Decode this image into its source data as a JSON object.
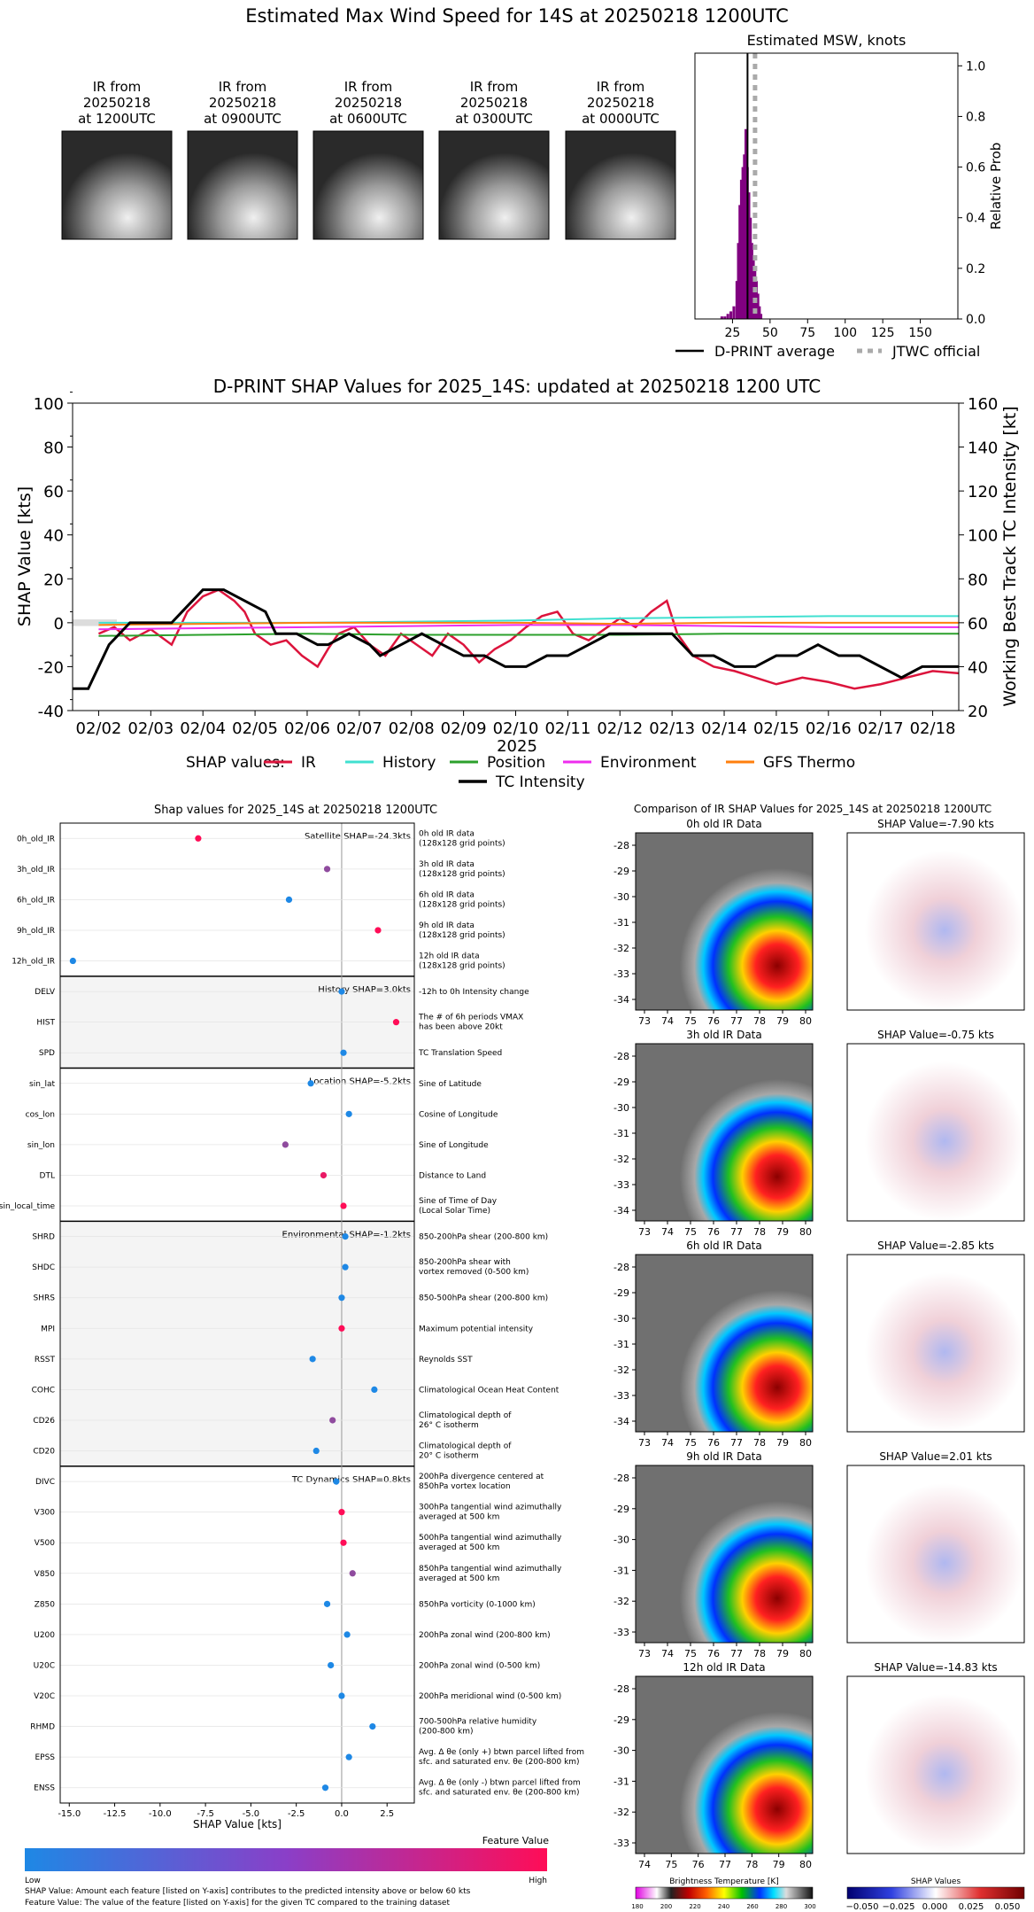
{
  "main_title": "Estimated Max Wind Speed for 14S at 20250218 1200UTC",
  "ir_thumbnails": [
    {
      "line1": "IR from",
      "line2": "20250218",
      "line3": "at 1200UTC"
    },
    {
      "line1": "IR from",
      "line2": "20250218",
      "line3": "at 0900UTC"
    },
    {
      "line1": "IR from",
      "line2": "20250218",
      "line3": "at 0600UTC"
    },
    {
      "line1": "IR from",
      "line2": "20250218",
      "line3": "at 0300UTC"
    },
    {
      "line1": "IR from",
      "line2": "20250218",
      "line3": "at 0000UTC"
    }
  ],
  "colors": {
    "ir": "#dc143c",
    "history": "#40e0d0",
    "position": "#2ca02c",
    "environment": "#ee2cee",
    "gfs_thermo": "#ff7f0e",
    "tc": "#000000",
    "hist_bar": "#800080",
    "jtwc": "#aaaaaa",
    "shap_low": "#1e88e5",
    "shap_high": "#ff0d57"
  },
  "chart_data": [
    {
      "id": "msw_histogram",
      "type": "bar",
      "title": "Estimated MSW, knots",
      "ylabel": "Relative Prob",
      "xlim": [
        0,
        175
      ],
      "ylim": [
        0,
        1.05
      ],
      "xticks": [
        "25",
        "50",
        "75",
        "100",
        "125",
        "150"
      ],
      "yticks": [
        "0.0",
        "0.2",
        "0.4",
        "0.6",
        "0.8",
        "1.0"
      ],
      "bin_centers": [
        18,
        20,
        22,
        24,
        26,
        28,
        29,
        30,
        31,
        32,
        33,
        34,
        35,
        36,
        37,
        38,
        39,
        40,
        41,
        42,
        43,
        44
      ],
      "values": [
        0.01,
        0.01,
        0.02,
        0.03,
        0.05,
        0.15,
        0.3,
        0.45,
        0.55,
        0.6,
        0.65,
        0.75,
        0.6,
        0.5,
        0.4,
        0.3,
        0.25,
        0.2,
        0.15,
        0.1,
        0.05,
        0.02
      ],
      "dprint_average": 35,
      "jtwc_official": 40,
      "legend": [
        {
          "label": "D-PRINT average",
          "style": "solid"
        },
        {
          "label": "JTWC official",
          "style": "dotted"
        }
      ]
    },
    {
      "id": "shap_timeseries",
      "type": "line",
      "title": "D-PRINT SHAP Values for 2025_14S: updated at 20250218 1200 UTC",
      "ylabel": "SHAP Value [kts]",
      "ylabel_right": "Working Best Track TC Intensity [kt]",
      "xlabel": "2025",
      "ylim": [
        -40,
        100
      ],
      "ylim_right": [
        20,
        160
      ],
      "yticks": [
        "-40",
        "-20",
        "0",
        "20",
        "40",
        "60",
        "80",
        "100"
      ],
      "yticks_right": [
        "20",
        "40",
        "60",
        "80",
        "100",
        "120",
        "140",
        "160"
      ],
      "x_tick_labels": [
        "02/02",
        "02/03",
        "02/04",
        "02/05",
        "02/06",
        "02/07",
        "02/08",
        "02/09",
        "02/10",
        "02/11",
        "02/12",
        "02/13",
        "02/14",
        "02/15",
        "02/16",
        "02/17",
        "02/18"
      ],
      "xlim_days": [
        1.5,
        18.5
      ],
      "legend_title": "SHAP values:",
      "series": [
        {
          "name": "IR",
          "key": "ir",
          "x": [
            2,
            2.3,
            2.6,
            3,
            3.4,
            3.7,
            4,
            4.3,
            4.6,
            4.8,
            5,
            5.3,
            5.6,
            5.9,
            6.2,
            6.4,
            6.6,
            6.9,
            7.2,
            7.5,
            7.8,
            8.1,
            8.4,
            8.7,
            9,
            9.3,
            9.6,
            9.9,
            10.2,
            10.5,
            10.8,
            11.1,
            11.4,
            11.7,
            12,
            12.3,
            12.6,
            12.9,
            13.1,
            13.4,
            13.8,
            14.2,
            14.6,
            15,
            15.5,
            16,
            16.5,
            17,
            17.5,
            18,
            18.5
          ],
          "y": [
            -5,
            -2,
            -8,
            -3,
            -10,
            5,
            12,
            15,
            10,
            5,
            -5,
            -10,
            -8,
            -15,
            -20,
            -12,
            -5,
            -2,
            -10,
            -15,
            -5,
            -10,
            -15,
            -5,
            -10,
            -18,
            -12,
            -8,
            -2,
            3,
            5,
            -5,
            -8,
            -3,
            2,
            -2,
            5,
            10,
            -5,
            -15,
            -20,
            -22,
            -25,
            -28,
            -25,
            -27,
            -30,
            -28,
            -25,
            -22,
            -23
          ]
        },
        {
          "name": "History",
          "key": "history",
          "x": [
            2,
            4,
            6,
            8,
            10,
            12,
            14,
            16,
            18.5
          ],
          "y": [
            0,
            0,
            0,
            0.5,
            1,
            2,
            2.5,
            3,
            3
          ]
        },
        {
          "name": "Position",
          "key": "position",
          "x": [
            2,
            4,
            6,
            8,
            10,
            12,
            14,
            16,
            18.5
          ],
          "y": [
            -6,
            -5.5,
            -5,
            -5.5,
            -5.5,
            -5.5,
            -5,
            -5,
            -5
          ]
        },
        {
          "name": "Environment",
          "key": "environment",
          "x": [
            2,
            4,
            6,
            8,
            10,
            12,
            14,
            16,
            18.5
          ],
          "y": [
            -3,
            -2.5,
            -2,
            -1.5,
            -1,
            -1,
            -1.5,
            -2,
            -2
          ]
        },
        {
          "name": "GFS Thermo",
          "key": "gfs_thermo",
          "x": [
            2,
            4,
            6,
            8,
            10,
            12,
            14,
            16,
            18.5
          ],
          "y": [
            -1,
            -0.5,
            0,
            0,
            0,
            -0.5,
            0,
            0,
            0
          ]
        }
      ],
      "intensity": {
        "name": "TC Intensity",
        "x": [
          1.5,
          1.8,
          2.2,
          2.4,
          2.6,
          3,
          3.4,
          3.6,
          4,
          4.4,
          4.8,
          5.2,
          5.4,
          5.8,
          6.2,
          6.4,
          6.8,
          7.2,
          7.4,
          7.8,
          8.2,
          8.6,
          9,
          9.4,
          9.8,
          10.2,
          10.6,
          11,
          11.4,
          11.8,
          12.2,
          12.6,
          13,
          13.4,
          13.8,
          14.2,
          14.6,
          15,
          15.4,
          15.8,
          16.2,
          16.6,
          17,
          17.4,
          17.8,
          18.2,
          18.5
        ],
        "y": [
          30,
          30,
          50,
          55,
          60,
          60,
          60,
          65,
          75,
          75,
          70,
          65,
          55,
          55,
          50,
          50,
          55,
          50,
          45,
          50,
          55,
          50,
          45,
          45,
          40,
          40,
          45,
          45,
          50,
          55,
          55,
          55,
          55,
          45,
          45,
          40,
          40,
          45,
          45,
          50,
          45,
          45,
          40,
          35,
          40,
          40,
          40
        ]
      }
    },
    {
      "id": "shap_features",
      "type": "scatter",
      "title": "Shap values for 2025_14S at 20250218 1200UTC",
      "xlabel": "SHAP Value [kts]",
      "xlim": [
        -15.5,
        4
      ],
      "xticks": [
        "-15.0",
        "-12.5",
        "-10.0",
        "-7.5",
        "-5.0",
        "-2.5",
        "0.0",
        "2.5"
      ],
      "groups": [
        {
          "label": "Satellite SHAP=-24.3kts",
          "shaded": false,
          "features": [
            {
              "name": "0h_old_IR",
              "desc1": "0h old IR data",
              "desc2": "(128x128 grid points)",
              "shap": -7.9,
              "fv": 1.0
            },
            {
              "name": "3h_old_IR",
              "desc1": "3h old IR data",
              "desc2": "(128x128 grid points)",
              "shap": -0.8,
              "fv": 0.5
            },
            {
              "name": "6h_old_IR",
              "desc1": "6h old IR data",
              "desc2": "(128x128 grid points)",
              "shap": -2.9,
              "fv": 0.0
            },
            {
              "name": "9h_old_IR",
              "desc1": "9h old IR data",
              "desc2": "(128x128 grid points)",
              "shap": 2.0,
              "fv": 1.0
            },
            {
              "name": "12h_old_IR",
              "desc1": "12h old IR data",
              "desc2": "(128x128 grid points)",
              "shap": -14.8,
              "fv": 0.0
            }
          ]
        },
        {
          "label": "History SHAP=3.0kts",
          "shaded": true,
          "features": [
            {
              "name": "DELV",
              "desc1": "-12h to 0h Intensity change",
              "desc2": "",
              "shap": 0.0,
              "fv": 0.0
            },
            {
              "name": "HIST",
              "desc1": "The # of 6h periods VMAX",
              "desc2": "has been above 20kt",
              "shap": 3.0,
              "fv": 1.0
            },
            {
              "name": "SPD",
              "desc1": "TC Translation Speed",
              "desc2": "",
              "shap": 0.1,
              "fv": 0.0
            }
          ]
        },
        {
          "label": "Location SHAP=-5.2kts",
          "shaded": false,
          "features": [
            {
              "name": "sin_lat",
              "desc1": "Sine of Latitude",
              "desc2": "",
              "shap": -1.7,
              "fv": 0.0
            },
            {
              "name": "cos_lon",
              "desc1": "Cosine of Longitude",
              "desc2": "",
              "shap": 0.4,
              "fv": 0.0
            },
            {
              "name": "sin_lon",
              "desc1": "Sine of Longitude",
              "desc2": "",
              "shap": -3.1,
              "fv": 0.5
            },
            {
              "name": "DTL",
              "desc1": "Distance to Land",
              "desc2": "",
              "shap": -1.0,
              "fv": 0.9
            },
            {
              "name": "sin_local_time",
              "desc1": "Sine of Time of Day",
              "desc2": "(Local Solar Time)",
              "shap": 0.1,
              "fv": 1.0
            }
          ]
        },
        {
          "label": "Environmental SHAP=-1.2kts",
          "shaded": true,
          "features": [
            {
              "name": "SHRD",
              "desc1": "850-200hPa shear (200-800 km)",
              "desc2": "",
              "shap": 0.2,
              "fv": 0.0
            },
            {
              "name": "SHDC",
              "desc1": "850-200hPa shear with",
              "desc2": "vortex removed (0-500 km)",
              "shap": 0.2,
              "fv": 0.0
            },
            {
              "name": "SHRS",
              "desc1": "850-500hPa shear (200-800 km)",
              "desc2": "",
              "shap": 0.0,
              "fv": 0.0
            },
            {
              "name": "MPI",
              "desc1": "Maximum potential intensity",
              "desc2": "",
              "shap": 0.0,
              "fv": 1.0
            },
            {
              "name": "RSST",
              "desc1": "Reynolds SST",
              "desc2": "",
              "shap": -1.6,
              "fv": 0.0
            },
            {
              "name": "COHC",
              "desc1": "Climatological Ocean Heat Content",
              "desc2": "",
              "shap": 1.8,
              "fv": 0.0
            },
            {
              "name": "CD26",
              "desc1": "Climatological depth of",
              "desc2": "26° C isotherm",
              "shap": -0.5,
              "fv": 0.5
            },
            {
              "name": "CD20",
              "desc1": "Climatological depth of",
              "desc2": "20° C isotherm",
              "shap": -1.4,
              "fv": 0.0
            }
          ]
        },
        {
          "label": "TC Dynamics SHAP=0.8kts",
          "shaded": false,
          "features": [
            {
              "name": "DIVC",
              "desc1": "200hPa divergence centered at",
              "desc2": "850hPa vortex location",
              "shap": -0.3,
              "fv": 0.0
            },
            {
              "name": "V300",
              "desc1": "300hPa tangential wind azimuthally",
              "desc2": "averaged at 500 km",
              "shap": 0.0,
              "fv": 1.0
            },
            {
              "name": "V500",
              "desc1": "500hPa tangential wind azimuthally",
              "desc2": "averaged at 500 km",
              "shap": 0.1,
              "fv": 1.0
            },
            {
              "name": "V850",
              "desc1": "850hPa tangential wind azimuthally",
              "desc2": "averaged at 500 km",
              "shap": 0.6,
              "fv": 0.5
            },
            {
              "name": "Z850",
              "desc1": "850hPa vorticity (0-1000 km)",
              "desc2": "",
              "shap": -0.8,
              "fv": 0.0
            },
            {
              "name": "U200",
              "desc1": "200hPa zonal wind (200-800 km)",
              "desc2": "",
              "shap": 0.3,
              "fv": 0.0
            },
            {
              "name": "U20C",
              "desc1": "200hPa zonal wind (0-500 km)",
              "desc2": "",
              "shap": -0.6,
              "fv": 0.0
            },
            {
              "name": "V20C",
              "desc1": "200hPa meridional wind (0-500 km)",
              "desc2": "",
              "shap": 0.0,
              "fv": 0.0
            },
            {
              "name": "RHMD",
              "desc1": "700-500hPa relative humidity",
              "desc2": "(200-800 km)",
              "shap": 1.7,
              "fv": 0.0
            },
            {
              "name": "EPSS",
              "desc1": "Avg. Δ θe (only +) btwn parcel lifted from",
              "desc2": "sfc. and saturated env. θe (200-800 km)",
              "shap": 0.4,
              "fv": 0.0
            },
            {
              "name": "ENSS",
              "desc1": "Avg. Δ θe (only -) btwn parcel lifted from",
              "desc2": "sfc. and saturated env. θe (200-800 km)",
              "shap": -0.9,
              "fv": 0.0
            }
          ]
        }
      ]
    }
  ],
  "feature_colorbar": {
    "title": "Feature Value",
    "low": "Low",
    "high": "High"
  },
  "footnotes": [
    "SHAP Value: Amount each feature [listed on Y-axis] contributes to the predicted intensity above or below 60 kts",
    "Feature Value: The value of the feature [listed on Y-axis] for the given TC compared to the training dataset"
  ],
  "comparison": {
    "title": "Comparison of IR SHAP Values for 2025_14S at 20250218 1200UTC",
    "rows": [
      {
        "ir_title": "0h old IR Data",
        "shap_title": "SHAP Value=-7.90 kts",
        "yticks": [
          "-28",
          "-29",
          "-30",
          "-31",
          "-32",
          "-33",
          "-34"
        ],
        "xticks": [
          "73",
          "74",
          "75",
          "76",
          "77",
          "78",
          "79",
          "80"
        ]
      },
      {
        "ir_title": "3h old IR Data",
        "shap_title": "SHAP Value=-0.75 kts",
        "yticks": [
          "-28",
          "-29",
          "-30",
          "-31",
          "-32",
          "-33",
          "-34"
        ],
        "xticks": [
          "73",
          "74",
          "75",
          "76",
          "77",
          "78",
          "79",
          "80"
        ]
      },
      {
        "ir_title": "6h old IR Data",
        "shap_title": "SHAP Value=-2.85 kts",
        "yticks": [
          "-28",
          "-29",
          "-30",
          "-31",
          "-32",
          "-33",
          "-34"
        ],
        "xticks": [
          "73",
          "74",
          "75",
          "76",
          "77",
          "78",
          "79",
          "80"
        ]
      },
      {
        "ir_title": "9h old IR Data",
        "shap_title": "SHAP Value=2.01 kts",
        "yticks": [
          "-28",
          "-29",
          "-30",
          "-31",
          "-32",
          "-33"
        ],
        "xticks": [
          "73",
          "74",
          "75",
          "76",
          "77",
          "78",
          "79",
          "80"
        ]
      },
      {
        "ir_title": "12h old IR Data",
        "shap_title": "SHAP Value=-14.83 kts",
        "yticks": [
          "-28",
          "-29",
          "-30",
          "-31",
          "-32",
          "-33"
        ],
        "xticks": [
          "74",
          "75",
          "76",
          "77",
          "78",
          "79",
          "80"
        ]
      }
    ],
    "bt_colorbar": {
      "title": "Brightness Temperature [K]",
      "ticks": [
        "180",
        "200",
        "220",
        "240",
        "260",
        "280",
        "300"
      ]
    },
    "shap_colorbar": {
      "title": "SHAP Values",
      "ticks": [
        "−0.050",
        "−0.025",
        "0.000",
        "0.025",
        "0.050"
      ]
    }
  }
}
